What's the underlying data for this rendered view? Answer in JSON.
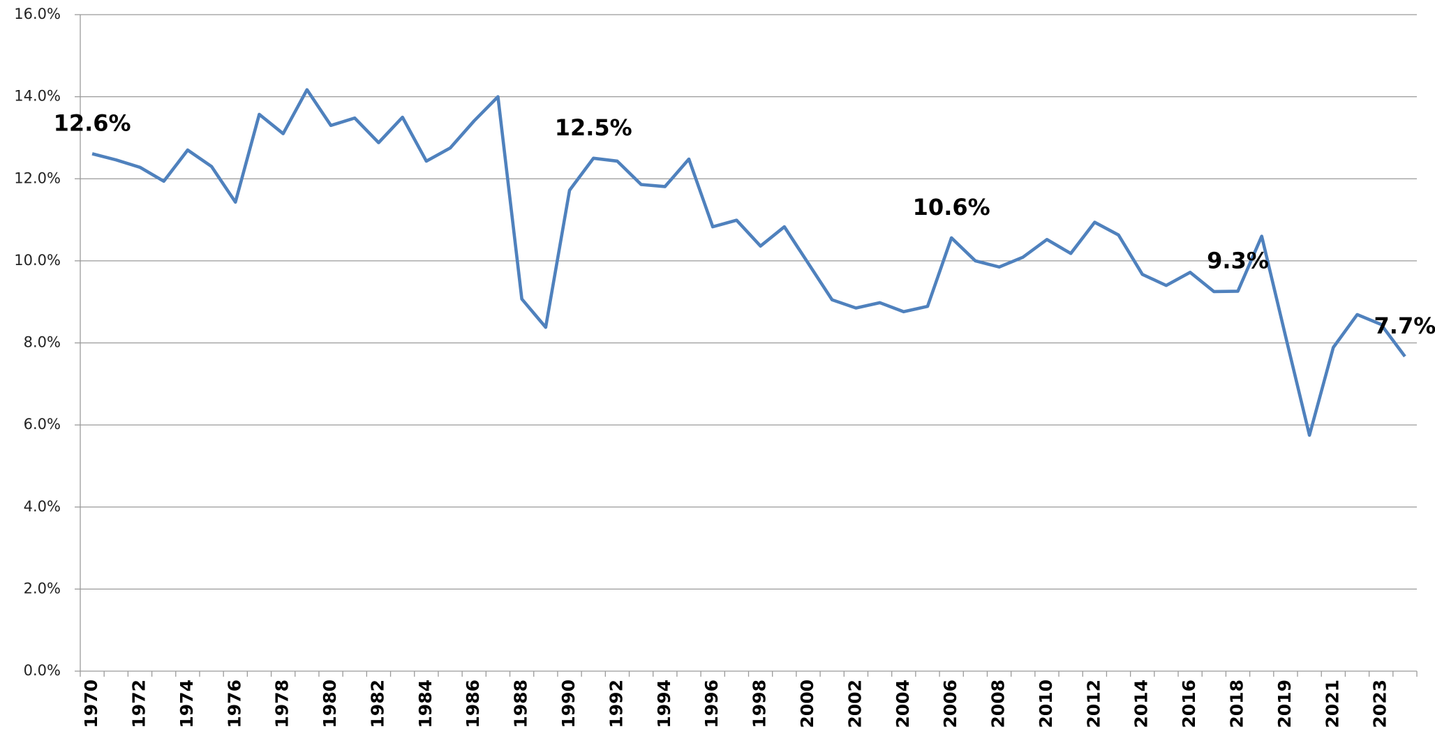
{
  "chart_data": {
    "type": "line",
    "categories": [
      "1970",
      null,
      "1972",
      null,
      "1974",
      null,
      "1976",
      null,
      "1978",
      null,
      "1980",
      null,
      "1982",
      null,
      "1984",
      null,
      "1986",
      null,
      "1988",
      null,
      "1990",
      null,
      "1992",
      null,
      "1994",
      null,
      "1996",
      null,
      "1998",
      null,
      "2000",
      null,
      "2002",
      null,
      "2004",
      null,
      "2006",
      null,
      "2008",
      null,
      "2010",
      null,
      "2012",
      null,
      "2014",
      null,
      "2016",
      null,
      "2018",
      null,
      "2019",
      null,
      "2021",
      null,
      "2023",
      null
    ],
    "series": [
      {
        "color": "#4f81bd",
        "values": [
          12.61,
          12.46,
          12.28,
          11.94,
          12.7,
          12.3,
          11.43,
          13.57,
          13.1,
          14.17,
          13.3,
          13.48,
          12.88,
          13.5,
          12.43,
          12.75,
          13.41,
          14.0,
          9.07,
          8.38,
          11.72,
          12.5,
          12.43,
          11.86,
          11.81,
          12.48,
          10.83,
          10.99,
          10.36,
          10.83,
          9.94,
          9.05,
          8.85,
          8.98,
          8.76,
          8.89,
          10.56,
          10.0,
          9.85,
          10.09,
          10.52,
          10.18,
          10.94,
          10.63,
          9.67,
          9.4,
          9.72,
          9.25,
          9.26,
          10.6,
          8.16,
          5.75,
          7.89,
          8.69,
          8.45,
          7.67
        ],
        "value_labels": [
          "12.6%",
          null,
          null,
          null,
          null,
          null,
          null,
          null,
          null,
          null,
          null,
          null,
          null,
          null,
          null,
          null,
          null,
          null,
          null,
          null,
          null,
          "12.5%",
          null,
          null,
          null,
          null,
          null,
          null,
          null,
          null,
          null,
          null,
          null,
          null,
          null,
          null,
          "10.6%",
          null,
          null,
          null,
          null,
          null,
          null,
          null,
          null,
          null,
          null,
          null,
          "9.3%",
          null,
          null,
          null,
          null,
          null,
          null,
          "7.7%"
        ]
      }
    ],
    "ylim": [
      0,
      16
    ],
    "yticks": [
      {
        "value": 0,
        "label": "0.0%"
      },
      {
        "value": 2,
        "label": "2.0%"
      },
      {
        "value": 4,
        "label": "4.0%"
      },
      {
        "value": 6,
        "label": "6.0%"
      },
      {
        "value": 8,
        "label": "8.0%"
      },
      {
        "value": 10,
        "label": "10.0%"
      },
      {
        "value": 12,
        "label": "12.0%"
      },
      {
        "value": 14,
        "label": "14.0%"
      },
      {
        "value": 16,
        "label": "16.0%"
      }
    ],
    "grid": true
  }
}
